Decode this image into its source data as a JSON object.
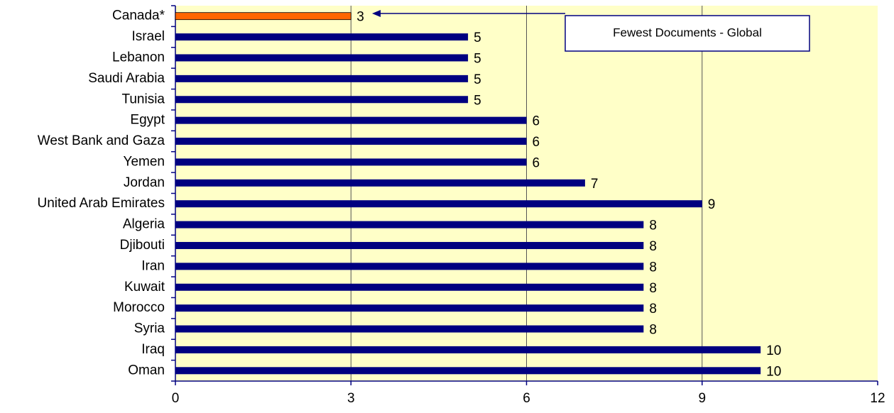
{
  "chart_data": {
    "type": "barh",
    "categories": [
      "Canada*",
      "Israel",
      "Lebanon",
      "Saudi Arabia",
      "Tunisia",
      "Egypt",
      "West Bank and Gaza",
      "Yemen",
      "Jordan",
      "United Arab Emirates",
      "Algeria",
      "Djibouti",
      "Iran",
      "Kuwait",
      "Morocco",
      "Syria",
      "Iraq",
      "Oman"
    ],
    "values": [
      3,
      5,
      5,
      5,
      5,
      6,
      6,
      6,
      7,
      9,
      8,
      8,
      8,
      8,
      8,
      8,
      10,
      10
    ],
    "colors": [
      "#ff6600",
      "#000080",
      "#000080",
      "#000080",
      "#000080",
      "#000080",
      "#000080",
      "#000080",
      "#000080",
      "#000080",
      "#000080",
      "#000080",
      "#000080",
      "#000080",
      "#000080",
      "#000080",
      "#000080",
      "#000080"
    ],
    "xlim": [
      0,
      12
    ],
    "xticks": [
      0,
      3,
      6,
      9,
      12
    ],
    "grid": true,
    "annotation": "Fewest Documents - Global"
  }
}
